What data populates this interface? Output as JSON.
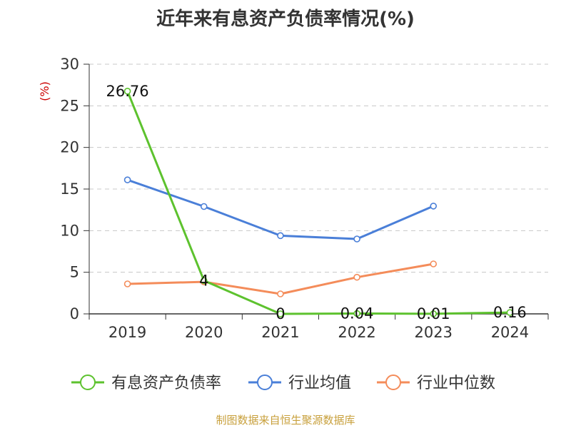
{
  "chart_data": {
    "type": "line",
    "title": "近年来有息资产负债率情况(%)",
    "ylabel": "(%)",
    "categories": [
      "2019",
      "2020",
      "2021",
      "2022",
      "2023",
      "2024"
    ],
    "ylim": [
      0,
      30
    ],
    "yticks": [
      "0",
      "5",
      "10",
      "15",
      "20",
      "25",
      "30"
    ],
    "grid": "dashed horizontal",
    "legend_position": "bottom",
    "series": [
      {
        "name": "有息资产负债率",
        "color": "#5dc22e",
        "values": [
          26.76,
          4,
          0,
          0.04,
          0.01,
          0.16
        ],
        "labels": [
          "26.76",
          "4",
          "0",
          "0.04",
          "0.01",
          "0.16"
        ]
      },
      {
        "name": "行业均值",
        "color": "#4a7fd8",
        "values": [
          16.1,
          12.9,
          9.4,
          9.0,
          12.95,
          null
        ]
      },
      {
        "name": "行业中位数",
        "color": "#f48c5a",
        "values": [
          3.6,
          3.85,
          2.4,
          4.4,
          6.0,
          null
        ]
      }
    ]
  },
  "footer": {
    "source": "制图数据来自恒生聚源数据库"
  }
}
